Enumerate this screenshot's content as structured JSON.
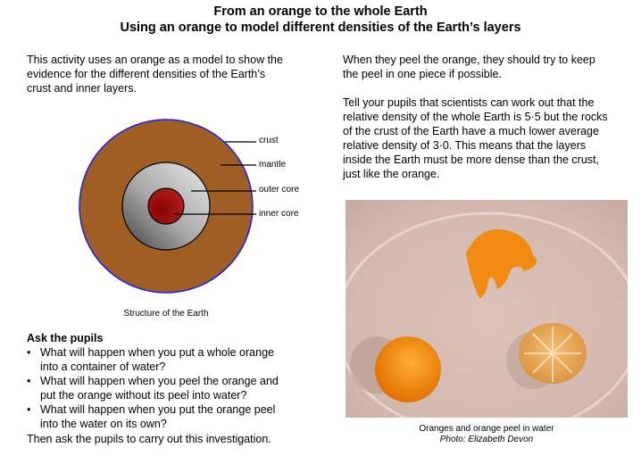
{
  "header": {
    "title": "From an orange to the whole Earth",
    "subtitle": "Using an orange to model different densities of the Earth’s layers"
  },
  "left": {
    "intro": [
      "This activity uses an orange as a model to show the",
      "evidence for the different densities of the Earth’s",
      "crust and inner layers."
    ],
    "diagram": {
      "labels": [
        "crust",
        "mantle",
        "outer core",
        "inner core"
      ],
      "caption": "Structure of the Earth",
      "colors": {
        "crust": "#1a1aff",
        "mantle": "#a05f22",
        "outer_core": "#c8c8c8",
        "inner_core": "#a01010"
      }
    },
    "ask_heading": "Ask the pupils",
    "questions": [
      [
        "What will happen when you put a whole orange",
        "into a container of water?"
      ],
      [
        "What will happen when you peel the orange and",
        "put the orange without its peel into water?"
      ],
      [
        "What will happen when you put the orange peel",
        "into the water on its own?"
      ]
    ],
    "closing": "Then ask the pupils to carry out this investigation."
  },
  "right": {
    "para1": [
      "When they peel the orange, they should try to keep",
      "the peel in one piece if possible."
    ],
    "para2": [
      "Tell your pupils that scientists can work out that the",
      "relative density of the whole Earth is 5·5 but the rocks",
      "of the crust of the Earth have a much lower average",
      "relative density of 3·0. This means that the layers",
      "inside the Earth must be more dense than the crust,",
      "just like the orange."
    ],
    "photo": {
      "caption": "Oranges and orange peel in water",
      "credit": "Photo: Elizabeth Devon"
    }
  }
}
